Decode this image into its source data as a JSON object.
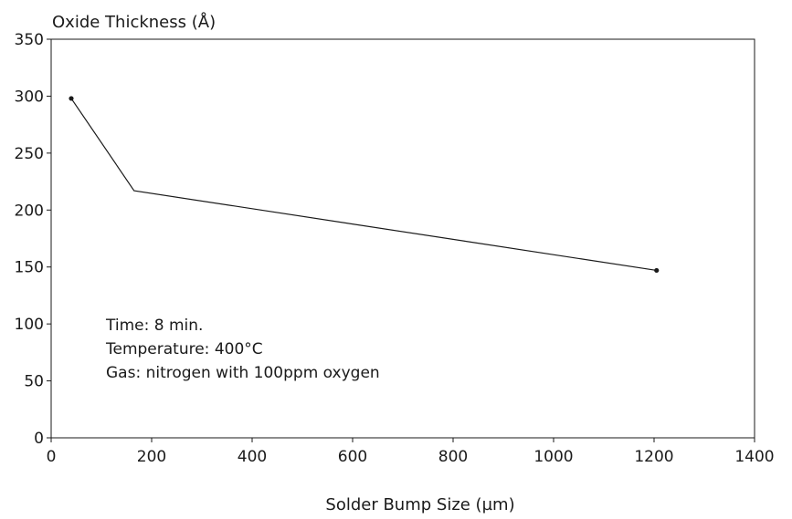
{
  "chart_data": {
    "type": "line",
    "title": "",
    "xlabel": "Solder Bump Size (µm)",
    "ylabel": "Oxide Thickness (Å)",
    "xlim": [
      0,
      1400
    ],
    "ylim": [
      0,
      350
    ],
    "x_ticks": [
      0,
      200,
      400,
      600,
      800,
      1000,
      1200,
      1400
    ],
    "y_ticks": [
      0,
      50,
      100,
      150,
      200,
      250,
      300,
      350
    ],
    "grid": false,
    "series": [
      {
        "x": [
          40,
          165,
          1205
        ],
        "y": [
          298,
          217,
          147
        ],
        "markers": [
          true,
          false,
          true
        ]
      }
    ],
    "annotations": [
      "Time: 8 min.",
      "Temperature:  400°C",
      "Gas: nitrogen with 100ppm oxygen"
    ]
  }
}
